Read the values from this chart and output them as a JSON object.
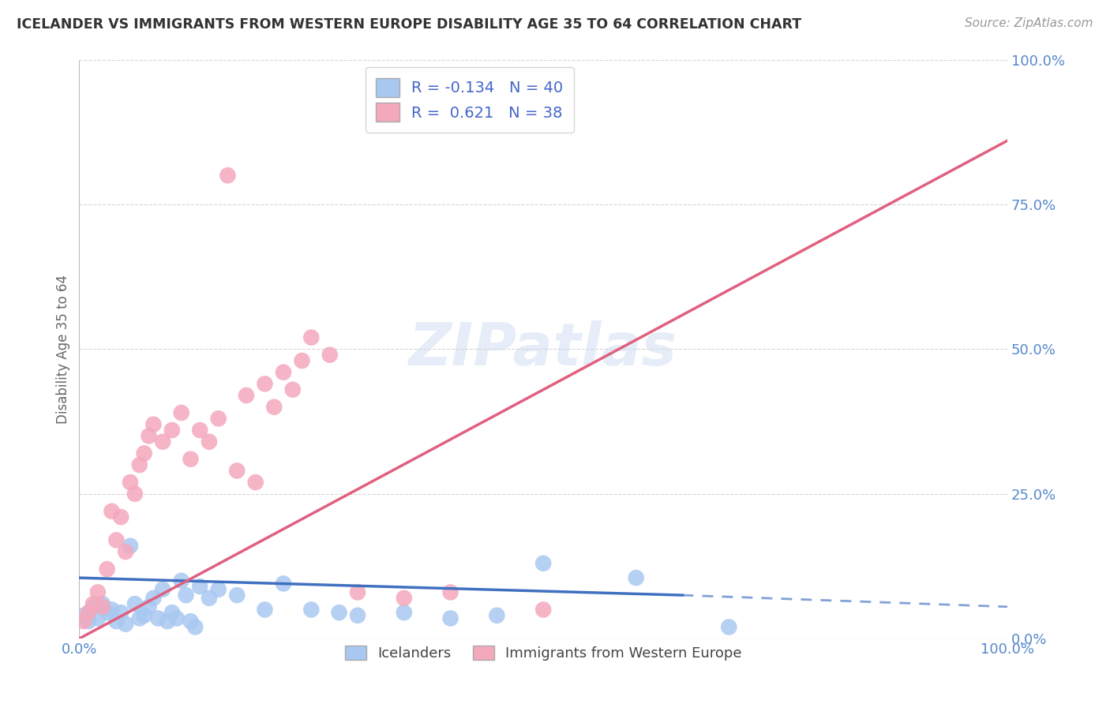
{
  "title": "ICELANDER VS IMMIGRANTS FROM WESTERN EUROPE DISABILITY AGE 35 TO 64 CORRELATION CHART",
  "source": "Source: ZipAtlas.com",
  "ylabel": "Disability Age 35 to 64",
  "watermark": "ZIPatlas",
  "blue_R": -0.134,
  "blue_N": 40,
  "pink_R": 0.621,
  "pink_N": 38,
  "blue_color": "#A8C8F0",
  "pink_color": "#F4A8BC",
  "blue_line_color": "#4070C0",
  "pink_line_color": "#E06080",
  "legend_blue_label": "Icelanders",
  "legend_pink_label": "Immigrants from Western Europe",
  "blue_scatter_x": [
    0.5,
    1.0,
    1.5,
    2.0,
    2.5,
    3.0,
    3.5,
    4.0,
    4.5,
    5.0,
    5.5,
    6.0,
    6.5,
    7.0,
    7.5,
    8.0,
    8.5,
    9.0,
    9.5,
    10.0,
    10.5,
    11.0,
    11.5,
    12.0,
    12.5,
    13.0,
    14.0,
    15.0,
    17.0,
    20.0,
    22.0,
    25.0,
    28.0,
    30.0,
    35.0,
    40.0,
    45.0,
    50.0,
    60.0,
    70.0
  ],
  "blue_scatter_y": [
    4.0,
    3.0,
    5.5,
    3.5,
    6.0,
    4.5,
    5.0,
    3.0,
    4.5,
    2.5,
    16.0,
    6.0,
    3.5,
    4.0,
    5.5,
    7.0,
    3.5,
    8.5,
    3.0,
    4.5,
    3.5,
    10.0,
    7.5,
    3.0,
    2.0,
    9.0,
    7.0,
    8.5,
    7.5,
    5.0,
    9.5,
    5.0,
    4.5,
    4.0,
    4.5,
    3.5,
    4.0,
    13.0,
    10.5,
    2.0
  ],
  "pink_scatter_x": [
    0.5,
    1.0,
    1.5,
    2.0,
    2.5,
    3.0,
    3.5,
    4.0,
    4.5,
    5.0,
    5.5,
    6.0,
    6.5,
    7.0,
    7.5,
    8.0,
    9.0,
    10.0,
    11.0,
    12.0,
    13.0,
    14.0,
    15.0,
    16.0,
    17.0,
    18.0,
    19.0,
    20.0,
    21.0,
    22.0,
    23.0,
    24.0,
    25.0,
    27.0,
    30.0,
    35.0,
    40.0,
    50.0
  ],
  "pink_scatter_y": [
    3.0,
    4.5,
    6.0,
    8.0,
    5.5,
    12.0,
    22.0,
    17.0,
    21.0,
    15.0,
    27.0,
    25.0,
    30.0,
    32.0,
    35.0,
    37.0,
    34.0,
    36.0,
    39.0,
    31.0,
    36.0,
    34.0,
    38.0,
    80.0,
    29.0,
    42.0,
    27.0,
    44.0,
    40.0,
    46.0,
    43.0,
    48.0,
    52.0,
    49.0,
    8.0,
    7.0,
    8.0,
    5.0
  ],
  "ylim": [
    0,
    100
  ],
  "xlim": [
    0,
    100
  ],
  "ytick_positions": [
    0,
    25,
    50,
    75,
    100
  ],
  "ytick_labels": [
    "0.0%",
    "25.0%",
    "50.0%",
    "75.0%",
    "100.0%"
  ],
  "xtick_positions": [
    0,
    100
  ],
  "xtick_labels": [
    "0.0%",
    "100.0%"
  ],
  "grid_color": "#CCCCCC",
  "background_color": "#FFFFFF",
  "title_color": "#333333",
  "tick_label_color": "#5588CC",
  "blue_line_x0": 0,
  "blue_line_y0": 10.5,
  "blue_line_x1": 65,
  "blue_line_y1": 7.5,
  "blue_dash_x0": 65,
  "blue_dash_y0": 7.5,
  "blue_dash_x1": 100,
  "blue_dash_y1": 5.5,
  "pink_line_x0": 0,
  "pink_line_y0": 0,
  "pink_line_x1": 100,
  "pink_line_y1": 86.0
}
